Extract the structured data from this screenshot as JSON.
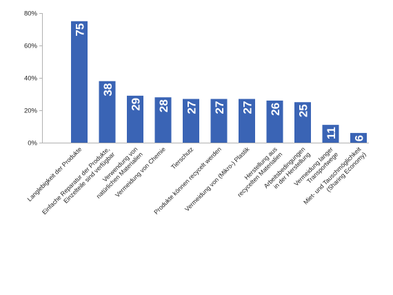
{
  "chart_data": {
    "type": "bar",
    "categories": [
      [
        "Langlebigkeit der Produkte"
      ],
      [
        "Einfache Reparatur der Produkte,",
        "Einzelteile sind verfügbar"
      ],
      [
        "Verwendung von",
        "natürlichen Materialien"
      ],
      [
        "Vermeidung von Chemie"
      ],
      [
        "Tierschutz"
      ],
      [
        "Produkte können recycelt werden"
      ],
      [
        "Vermeidung von (Mikro-) Plastik"
      ],
      [
        "Herstellung aus",
        "recycelten Materialien"
      ],
      [
        "Arbeitsbedingungen",
        "in der Herstellung"
      ],
      [
        "Vermeidung langer",
        "Transportwege"
      ],
      [
        "Miet- und Tauschmöglichkeit",
        "(Sharing Economy)"
      ]
    ],
    "values": [
      75,
      38,
      29,
      28,
      27,
      27,
      27,
      26,
      25,
      11,
      6
    ],
    "value_labels": [
      "75",
      "38",
      "29",
      "28",
      "27",
      "27",
      "27",
      "26",
      "25",
      "11",
      "6"
    ],
    "yticks": [
      "0%",
      "20%",
      "40%",
      "60%",
      "80%"
    ],
    "ytick_values": [
      0,
      20,
      40,
      60,
      80
    ],
    "ylim": [
      0,
      80
    ],
    "grid": false,
    "bar_color": "#3a64b5",
    "label_color": "#ffffff"
  }
}
